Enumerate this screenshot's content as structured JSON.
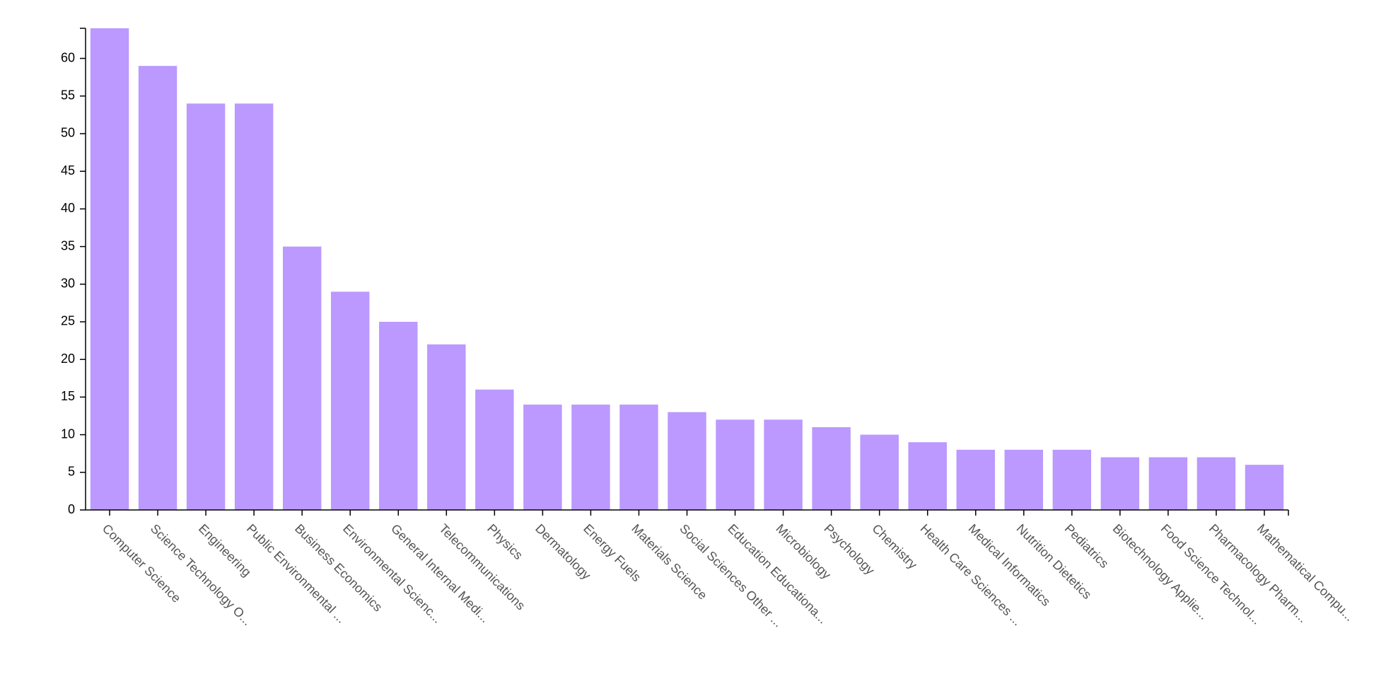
{
  "chart_data": {
    "type": "bar",
    "categories": [
      "Computer Science",
      "Science Technology O...",
      "Engineering",
      "Public Environmental ...",
      "Business Economics",
      "Environmental Scienc...",
      "General Internal Medi...",
      "Telecommunications",
      "Physics",
      "Dermatology",
      "Energy Fuels",
      "Materials Science",
      "Social Sciences Other ...",
      "Education Educationa...",
      "Microbiology",
      "Psychology",
      "Chemistry",
      "Health Care Sciences ...",
      "Medical Informatics",
      "Nutrition Dietetics",
      "Pediatrics",
      "Biotechnology Applie...",
      "Food Science Technol...",
      "Pharmacology Pharm...",
      "Mathematical Compu..."
    ],
    "values": [
      64,
      59,
      54,
      54,
      35,
      29,
      25,
      22,
      16,
      14,
      14,
      14,
      13,
      12,
      12,
      11,
      10,
      9,
      8,
      8,
      8,
      7,
      7,
      7,
      6
    ],
    "ylim": [
      0,
      64
    ],
    "yticks": [
      "0",
      "5",
      "10",
      "15",
      "20",
      "25",
      "30",
      "35",
      "40",
      "45",
      "50",
      "55",
      "60"
    ],
    "title": "",
    "xlabel": "",
    "ylabel": "",
    "grid": false,
    "bar_color": "#bb99ff"
  }
}
